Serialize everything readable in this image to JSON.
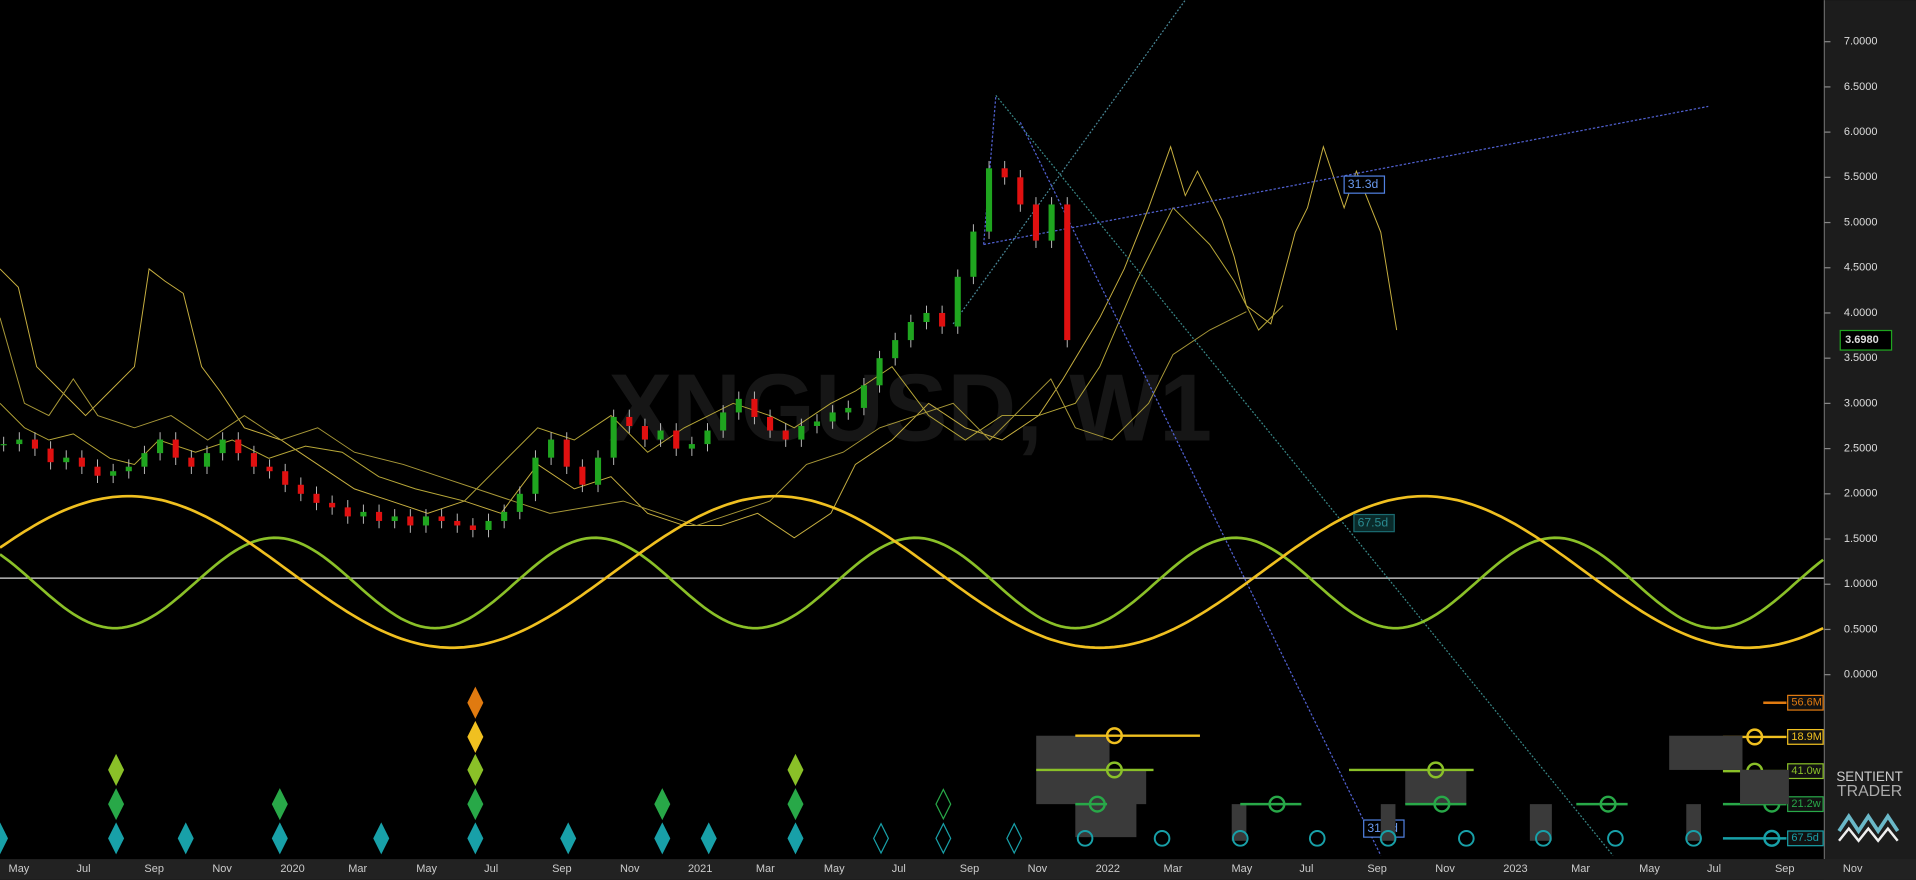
{
  "chart_data": {
    "type": "candlestick",
    "watermark": "XNGUSD, W1",
    "close": [
      2.55,
      2.6,
      2.5,
      2.35,
      2.4,
      2.3,
      2.2,
      2.25,
      2.3,
      2.45,
      2.6,
      2.4,
      2.3,
      2.45,
      2.6,
      2.45,
      2.3,
      2.25,
      2.1,
      2.0,
      1.9,
      1.85,
      1.75,
      1.8,
      1.7,
      1.75,
      1.65,
      1.75,
      1.7,
      1.65,
      1.6,
      1.7,
      1.8,
      2.0,
      2.4,
      2.6,
      2.3,
      2.1,
      2.4,
      2.85,
      2.75,
      2.6,
      2.7,
      2.5,
      2.55,
      2.7,
      2.9,
      3.05,
      2.85,
      2.7,
      2.6,
      2.75,
      2.8,
      2.9,
      2.95,
      3.2,
      3.5,
      3.7,
      3.9,
      4.0,
      3.85,
      4.4,
      4.9,
      5.6,
      5.5,
      5.2,
      4.8,
      5.2,
      3.7
    ],
    "up_color": "#1fa51f",
    "down_color": "#e01010",
    "ylim": [
      -2.04,
      7.46
    ],
    "yticks": [
      {
        "value": 0,
        "label": "0.0000"
      },
      {
        "value": 0.5,
        "label": "0.5000"
      },
      {
        "value": 1,
        "label": "1.0000"
      },
      {
        "value": 1.5,
        "label": "1.5000"
      },
      {
        "value": 2,
        "label": "2.0000"
      },
      {
        "value": 2.5,
        "label": "2.5000"
      },
      {
        "value": 3,
        "label": "3.0000"
      },
      {
        "value": 3.5,
        "label": "3.5000"
      },
      {
        "value": 4,
        "label": "4.0000"
      },
      {
        "value": 4.5,
        "label": "4.5000"
      },
      {
        "value": 5,
        "label": "5.0000"
      },
      {
        "value": 5.5,
        "label": "5.5000"
      },
      {
        "value": 6,
        "label": "6.0000"
      },
      {
        "value": 6.5,
        "label": "6.5000"
      },
      {
        "value": 7,
        "label": "7.0000"
      }
    ],
    "last_price": {
      "value": 3.698,
      "label": "3.6980"
    },
    "x_labels": [
      "May",
      "Jul",
      "Sep",
      "Nov",
      "2020",
      "Mar",
      "May",
      "Jul",
      "Sep",
      "Nov",
      "2021",
      "Mar",
      "May",
      "Jul",
      "Sep",
      "Nov",
      "2022",
      "Mar",
      "May",
      "Jul",
      "Sep",
      "Nov",
      "2023",
      "Mar",
      "May",
      "Jul",
      "Sep",
      "Nov"
    ],
    "annotations": [
      "31.3d",
      "67.5d",
      "31.3d"
    ],
    "cycles": [
      {
        "label": "56.6M",
        "color": "#e07a10"
      },
      {
        "label": "18.9M",
        "color": "#f0c020"
      },
      {
        "label": "41.0w",
        "color": "#8ac028"
      },
      {
        "label": "21.2w",
        "color": "#28a848"
      },
      {
        "label": "67.5d",
        "color": "#18a0a8"
      }
    ]
  },
  "logo": {
    "line1": "SENTIENT",
    "line2": "TRADER"
  }
}
